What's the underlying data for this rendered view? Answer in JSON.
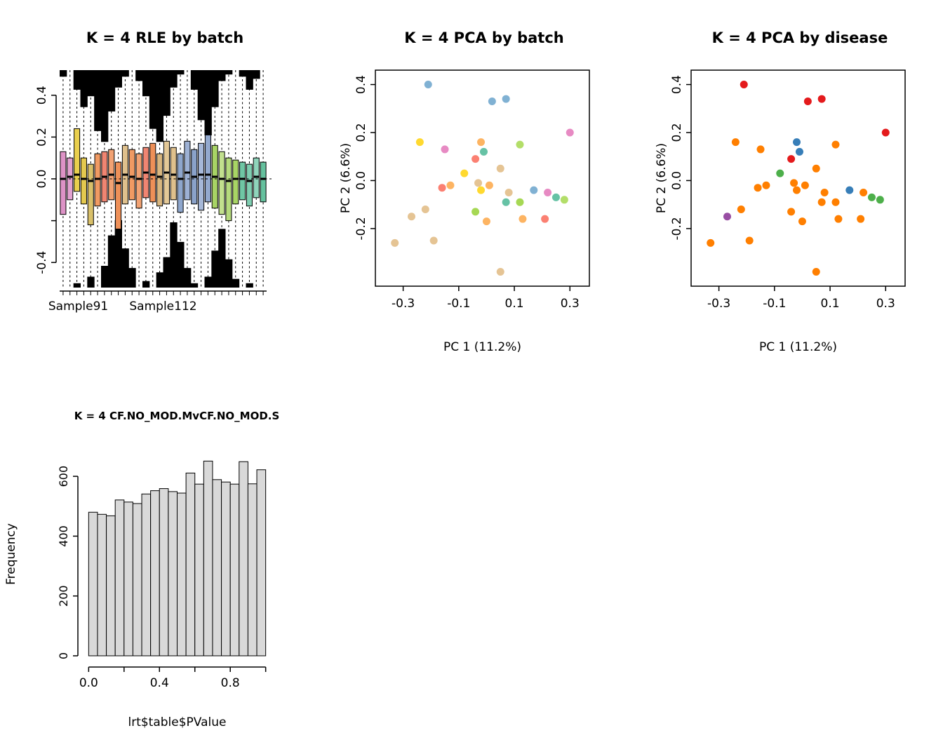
{
  "figure": {
    "background": "#ffffff"
  },
  "chart_data": [
    {
      "id": "rle",
      "type": "boxplot",
      "title": "K = 4 RLE by batch",
      "xlabel": "",
      "ylabel": "",
      "ylim": [
        -0.52,
        0.52
      ],
      "zero_line": 0.0,
      "yticks": [
        {
          "v": -0.4,
          "label": "-0.4"
        },
        {
          "v": -0.2,
          "label": ""
        },
        {
          "v": 0.0,
          "label": "0.0"
        },
        {
          "v": 0.2,
          "label": "0.2"
        },
        {
          "v": 0.4,
          "label": "0.4"
        }
      ],
      "x_labels": [
        {
          "label": "Sample91",
          "pos": 0.09
        },
        {
          "label": "Sample112",
          "pos": 0.5
        }
      ],
      "boxes": [
        {
          "c": "#dd92c6",
          "q1": -0.17,
          "q3": 0.13,
          "m": 0.0,
          "bt": 0.03,
          "bb": 0.0
        },
        {
          "c": "#e2a1cf",
          "q1": -0.1,
          "q3": 0.1,
          "m": 0.01,
          "bt": 0.0,
          "bb": 0.0
        },
        {
          "c": "#e9cf4e",
          "q1": -0.06,
          "q3": 0.24,
          "m": 0.02,
          "bt": 0.09,
          "bb": 0.02
        },
        {
          "c": "#e4c94f",
          "q1": -0.12,
          "q3": 0.1,
          "m": 0.0,
          "bt": 0.17,
          "bb": 0.0
        },
        {
          "c": "#d9c06a",
          "q1": -0.22,
          "q3": 0.07,
          "m": -0.01,
          "bt": 0.12,
          "bb": 0.05
        },
        {
          "c": "#f09a63",
          "q1": -0.13,
          "q3": 0.12,
          "m": 0.0,
          "bt": 0.28,
          "bb": 0.0
        },
        {
          "c": "#f08572",
          "q1": -0.11,
          "q3": 0.13,
          "m": 0.01,
          "bt": 0.33,
          "bb": 0.1
        },
        {
          "c": "#f2a273",
          "q1": -0.1,
          "q3": 0.14,
          "m": 0.02,
          "bt": 0.19,
          "bb": 0.24
        },
        {
          "c": "#ee9058",
          "q1": -0.24,
          "q3": 0.08,
          "m": -0.02,
          "bt": 0.08,
          "bb": 0.31
        },
        {
          "c": "#dfc08c",
          "q1": -0.12,
          "q3": 0.16,
          "m": 0.02,
          "bt": 0.03,
          "bb": 0.18
        },
        {
          "c": "#f09a63",
          "q1": -0.1,
          "q3": 0.14,
          "m": 0.01,
          "bt": 0.0,
          "bb": 0.09
        },
        {
          "c": "#f2a273",
          "q1": -0.14,
          "q3": 0.12,
          "m": 0.0,
          "bt": 0.05,
          "bb": 0.0
        },
        {
          "c": "#f08572",
          "q1": -0.09,
          "q3": 0.15,
          "m": 0.03,
          "bt": 0.12,
          "bb": 0.03
        },
        {
          "c": "#ee9058",
          "q1": -0.11,
          "q3": 0.17,
          "m": 0.02,
          "bt": 0.27,
          "bb": 0.0
        },
        {
          "c": "#d8b67f",
          "q1": -0.13,
          "q3": 0.12,
          "m": 0.01,
          "bt": 0.33,
          "bb": 0.07
        },
        {
          "c": "#e3c897",
          "q1": -0.12,
          "q3": 0.18,
          "m": 0.03,
          "bt": 0.21,
          "bb": 0.14
        },
        {
          "c": "#dfc08c",
          "q1": -0.1,
          "q3": 0.15,
          "m": 0.02,
          "bt": 0.08,
          "bb": 0.3
        },
        {
          "c": "#8ea6cc",
          "q1": -0.16,
          "q3": 0.12,
          "m": 0.0,
          "bt": 0.02,
          "bb": 0.21
        },
        {
          "c": "#9db1d4",
          "q1": -0.1,
          "q3": 0.18,
          "m": 0.03,
          "bt": 0.0,
          "bb": 0.09
        },
        {
          "c": "#8aa2c9",
          "q1": -0.12,
          "q3": 0.14,
          "m": 0.01,
          "bt": 0.09,
          "bb": 0.02
        },
        {
          "c": "#a6b8d8",
          "q1": -0.15,
          "q3": 0.17,
          "m": 0.02,
          "bt": 0.23,
          "bb": 0.0
        },
        {
          "c": "#93a9ce",
          "q1": -0.11,
          "q3": 0.21,
          "m": 0.02,
          "bt": 0.3,
          "bb": 0.05
        },
        {
          "c": "#a8d465",
          "q1": -0.14,
          "q3": 0.16,
          "m": 0.01,
          "bt": 0.17,
          "bb": 0.17
        },
        {
          "c": "#c2e08e",
          "q1": -0.17,
          "q3": 0.13,
          "m": 0.0,
          "bt": 0.05,
          "bb": 0.27
        },
        {
          "c": "#b5da7d",
          "q1": -0.2,
          "q3": 0.1,
          "m": -0.01,
          "bt": 0.02,
          "bb": 0.13
        },
        {
          "c": "#a8d465",
          "q1": -0.12,
          "q3": 0.09,
          "m": 0.0,
          "bt": 0.0,
          "bb": 0.04
        },
        {
          "c": "#6fc6a4",
          "q1": -0.1,
          "q3": 0.08,
          "m": 0.0,
          "bt": 0.03,
          "bb": 0.0
        },
        {
          "c": "#7ecdb0",
          "q1": -0.13,
          "q3": 0.07,
          "m": -0.01,
          "bt": 0.09,
          "bb": 0.02
        },
        {
          "c": "#8fd4bb",
          "q1": -0.09,
          "q3": 0.1,
          "m": 0.01,
          "bt": 0.04,
          "bb": 0.0
        },
        {
          "c": "#65c19e",
          "q1": -0.11,
          "q3": 0.08,
          "m": 0.0,
          "bt": 0.0,
          "bb": 0.0
        }
      ]
    },
    {
      "id": "pca_batch",
      "type": "scatter",
      "title": "K = 4 PCA by batch",
      "xlabel": "PC 1 (11.2%)",
      "ylabel": "PC 2 (6.6%)",
      "xlim": [
        -0.4,
        0.37
      ],
      "ylim": [
        -0.44,
        0.46
      ],
      "xticks": [
        {
          "v": -0.3,
          "label": "-0.3"
        },
        {
          "v": -0.1,
          "label": "-0.1"
        },
        {
          "v": 0.1,
          "label": "0.1"
        },
        {
          "v": 0.3,
          "label": "0.3"
        }
      ],
      "yticks": [
        {
          "v": -0.2,
          "label": "-0.2"
        },
        {
          "v": 0.0,
          "label": "0.0"
        },
        {
          "v": 0.2,
          "label": "0.2"
        },
        {
          "v": 0.4,
          "label": "0.4"
        }
      ],
      "points": [
        {
          "x": -0.21,
          "y": 0.4,
          "color": "#80b1d3"
        },
        {
          "x": 0.02,
          "y": 0.33,
          "color": "#80b1d3"
        },
        {
          "x": 0.07,
          "y": 0.34,
          "color": "#80b1d3"
        },
        {
          "x": 0.3,
          "y": 0.2,
          "color": "#e78ac3"
        },
        {
          "x": -0.24,
          "y": 0.16,
          "color": "#ffd92f"
        },
        {
          "x": -0.15,
          "y": 0.13,
          "color": "#e78ac3"
        },
        {
          "x": -0.02,
          "y": 0.16,
          "color": "#fdb462"
        },
        {
          "x": -0.01,
          "y": 0.12,
          "color": "#66c2a5"
        },
        {
          "x": 0.12,
          "y": 0.15,
          "color": "#b3de69"
        },
        {
          "x": -0.04,
          "y": 0.09,
          "color": "#fb8072"
        },
        {
          "x": 0.05,
          "y": 0.05,
          "color": "#e5c494"
        },
        {
          "x": -0.08,
          "y": 0.03,
          "color": "#ffd92f"
        },
        {
          "x": -0.16,
          "y": -0.03,
          "color": "#fb8072"
        },
        {
          "x": -0.13,
          "y": -0.02,
          "color": "#fdb462"
        },
        {
          "x": -0.03,
          "y": -0.01,
          "color": "#e5c494"
        },
        {
          "x": -0.02,
          "y": -0.04,
          "color": "#ffd92f"
        },
        {
          "x": 0.01,
          "y": -0.02,
          "color": "#fdb462"
        },
        {
          "x": 0.08,
          "y": -0.05,
          "color": "#e5c494"
        },
        {
          "x": 0.17,
          "y": -0.04,
          "color": "#80b1d3"
        },
        {
          "x": 0.22,
          "y": -0.05,
          "color": "#e78ac3"
        },
        {
          "x": 0.25,
          "y": -0.07,
          "color": "#66c2a5"
        },
        {
          "x": 0.28,
          "y": -0.08,
          "color": "#b3de69"
        },
        {
          "x": 0.12,
          "y": -0.09,
          "color": "#a6d854"
        },
        {
          "x": 0.07,
          "y": -0.09,
          "color": "#66c2a5"
        },
        {
          "x": -0.04,
          "y": -0.13,
          "color": "#a6d854"
        },
        {
          "x": -0.22,
          "y": -0.12,
          "color": "#e5c494"
        },
        {
          "x": -0.27,
          "y": -0.15,
          "color": "#e5c494"
        },
        {
          "x": 0.0,
          "y": -0.17,
          "color": "#fdb462"
        },
        {
          "x": 0.13,
          "y": -0.16,
          "color": "#fdb462"
        },
        {
          "x": 0.21,
          "y": -0.16,
          "color": "#fb8072"
        },
        {
          "x": -0.19,
          "y": -0.25,
          "color": "#e5c494"
        },
        {
          "x": -0.33,
          "y": -0.26,
          "color": "#e5c494"
        },
        {
          "x": 0.05,
          "y": -0.38,
          "color": "#e5c494"
        }
      ]
    },
    {
      "id": "pca_disease",
      "type": "scatter",
      "title": "K = 4 PCA by disease",
      "xlabel": "PC 1 (11.2%)",
      "ylabel": "PC 2 (6.6%)",
      "xlim": [
        -0.4,
        0.37
      ],
      "ylim": [
        -0.44,
        0.46
      ],
      "xticks": [
        {
          "v": -0.3,
          "label": "-0.3"
        },
        {
          "v": -0.1,
          "label": "-0.1"
        },
        {
          "v": 0.1,
          "label": "0.1"
        },
        {
          "v": 0.3,
          "label": "0.3"
        }
      ],
      "yticks": [
        {
          "v": -0.2,
          "label": "-0.2"
        },
        {
          "v": 0.0,
          "label": "0.0"
        },
        {
          "v": 0.2,
          "label": "0.2"
        },
        {
          "v": 0.4,
          "label": "0.4"
        }
      ],
      "points": [
        {
          "x": -0.21,
          "y": 0.4,
          "color": "#e41a1c"
        },
        {
          "x": 0.02,
          "y": 0.33,
          "color": "#e41a1c"
        },
        {
          "x": 0.07,
          "y": 0.34,
          "color": "#e41a1c"
        },
        {
          "x": 0.3,
          "y": 0.2,
          "color": "#e41a1c"
        },
        {
          "x": -0.24,
          "y": 0.16,
          "color": "#ff7f00"
        },
        {
          "x": -0.15,
          "y": 0.13,
          "color": "#ff7f00"
        },
        {
          "x": -0.02,
          "y": 0.16,
          "color": "#377eb8"
        },
        {
          "x": -0.01,
          "y": 0.12,
          "color": "#377eb8"
        },
        {
          "x": 0.12,
          "y": 0.15,
          "color": "#ff7f00"
        },
        {
          "x": -0.04,
          "y": 0.09,
          "color": "#e41a1c"
        },
        {
          "x": 0.05,
          "y": 0.05,
          "color": "#ff7f00"
        },
        {
          "x": -0.08,
          "y": 0.03,
          "color": "#4daf4a"
        },
        {
          "x": -0.16,
          "y": -0.03,
          "color": "#ff7f00"
        },
        {
          "x": -0.13,
          "y": -0.02,
          "color": "#ff7f00"
        },
        {
          "x": -0.03,
          "y": -0.01,
          "color": "#ff7f00"
        },
        {
          "x": -0.02,
          "y": -0.04,
          "color": "#ff7f00"
        },
        {
          "x": 0.01,
          "y": -0.02,
          "color": "#ff7f00"
        },
        {
          "x": 0.08,
          "y": -0.05,
          "color": "#ff7f00"
        },
        {
          "x": 0.17,
          "y": -0.04,
          "color": "#377eb8"
        },
        {
          "x": 0.22,
          "y": -0.05,
          "color": "#ff7f00"
        },
        {
          "x": 0.25,
          "y": -0.07,
          "color": "#4daf4a"
        },
        {
          "x": 0.28,
          "y": -0.08,
          "color": "#4daf4a"
        },
        {
          "x": 0.12,
          "y": -0.09,
          "color": "#ff7f00"
        },
        {
          "x": 0.07,
          "y": -0.09,
          "color": "#ff7f00"
        },
        {
          "x": -0.04,
          "y": -0.13,
          "color": "#ff7f00"
        },
        {
          "x": -0.22,
          "y": -0.12,
          "color": "#ff7f00"
        },
        {
          "x": -0.27,
          "y": -0.15,
          "color": "#984ea3"
        },
        {
          "x": 0.0,
          "y": -0.17,
          "color": "#ff7f00"
        },
        {
          "x": 0.13,
          "y": -0.16,
          "color": "#ff7f00"
        },
        {
          "x": 0.21,
          "y": -0.16,
          "color": "#ff7f00"
        },
        {
          "x": -0.19,
          "y": -0.25,
          "color": "#ff7f00"
        },
        {
          "x": -0.33,
          "y": -0.26,
          "color": "#ff7f00"
        },
        {
          "x": 0.05,
          "y": -0.38,
          "color": "#ff7f00"
        }
      ]
    },
    {
      "id": "hist",
      "type": "bar",
      "title": "K = 4 CF.NO_MOD.MvCF.NO_MOD.S",
      "xlabel": "lrt$table$PValue",
      "ylabel": "Frequency",
      "bin_start": 0,
      "bin_width": 0.05,
      "counts": [
        480,
        473,
        468,
        521,
        514,
        509,
        541,
        552,
        559,
        549,
        544,
        611,
        574,
        651,
        589,
        581,
        574,
        649,
        575,
        622
      ],
      "ylim": [
        0,
        680
      ],
      "bar_fill": "#d9d9d9",
      "xticks": [
        {
          "v": 0.0,
          "label": "0.0"
        },
        {
          "v": 0.2,
          "label": ""
        },
        {
          "v": 0.4,
          "label": "0.4"
        },
        {
          "v": 0.6,
          "label": ""
        },
        {
          "v": 0.8,
          "label": "0.8"
        },
        {
          "v": 1.0,
          "label": ""
        }
      ],
      "yticks": [
        {
          "v": 0,
          "label": "0"
        },
        {
          "v": 200,
          "label": "200"
        },
        {
          "v": 400,
          "label": "400"
        },
        {
          "v": 600,
          "label": "600"
        }
      ]
    }
  ]
}
